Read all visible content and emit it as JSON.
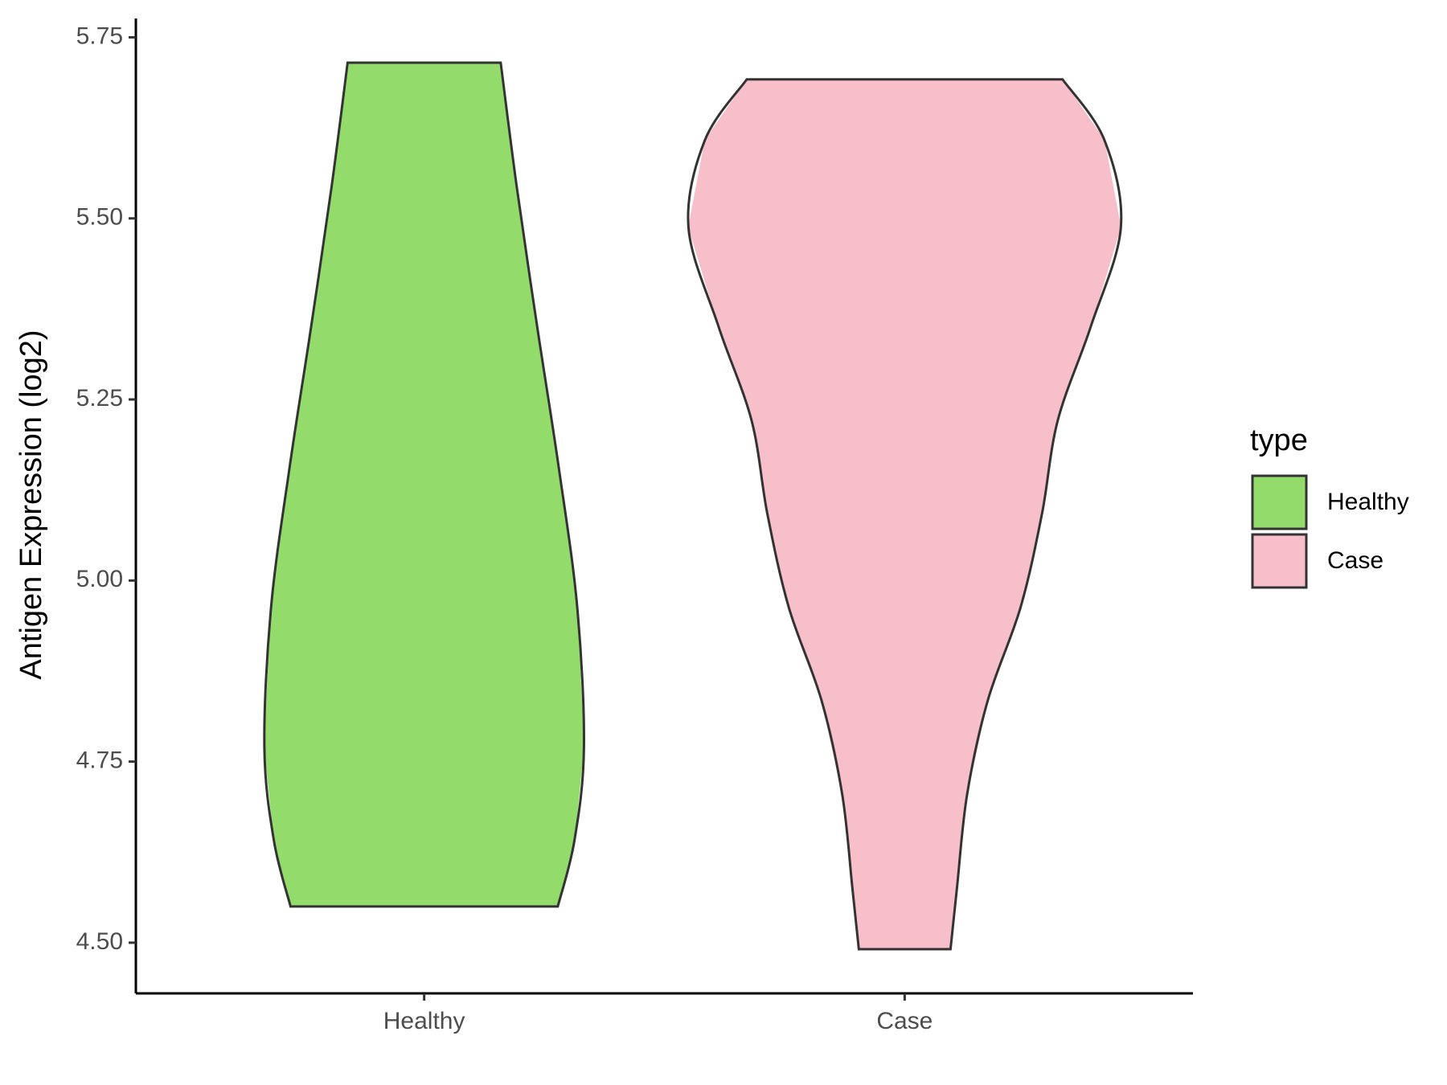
{
  "chart_data": {
    "type": "violin",
    "y_label": "Antigen Expression (log2)",
    "categories": [
      "Healthy",
      "Case"
    ],
    "legend_title": "type",
    "legend": "right",
    "series": [
      {
        "name": "Healthy",
        "color": "#93db6b",
        "y": [
          5.715,
          5.544,
          5.35,
          5.157,
          4.963,
          4.77,
          4.641,
          4.55
        ],
        "density": [
          0.354,
          0.428,
          0.523,
          0.622,
          0.708,
          0.739,
          0.695,
          0.618
        ]
      },
      {
        "name": "Case",
        "color": "#f7bfca",
        "y": [
          5.692,
          5.608,
          5.488,
          5.35,
          5.221,
          5.092,
          4.963,
          4.834,
          4.705,
          4.576,
          4.491
        ],
        "density": [
          0.73,
          0.924,
          1.0,
          0.86,
          0.708,
          0.635,
          0.536,
          0.384,
          0.289,
          0.242,
          0.212
        ]
      }
    ],
    "ylim": [
      4.43,
      5.776
    ],
    "yticks": [
      {
        "value": 4.5,
        "label": "4.50"
      },
      4.75,
      {
        "value": 5,
        "label": "5.00"
      },
      5.25,
      {
        "value": 5.5,
        "label": "5.50"
      },
      5.75
    ]
  }
}
